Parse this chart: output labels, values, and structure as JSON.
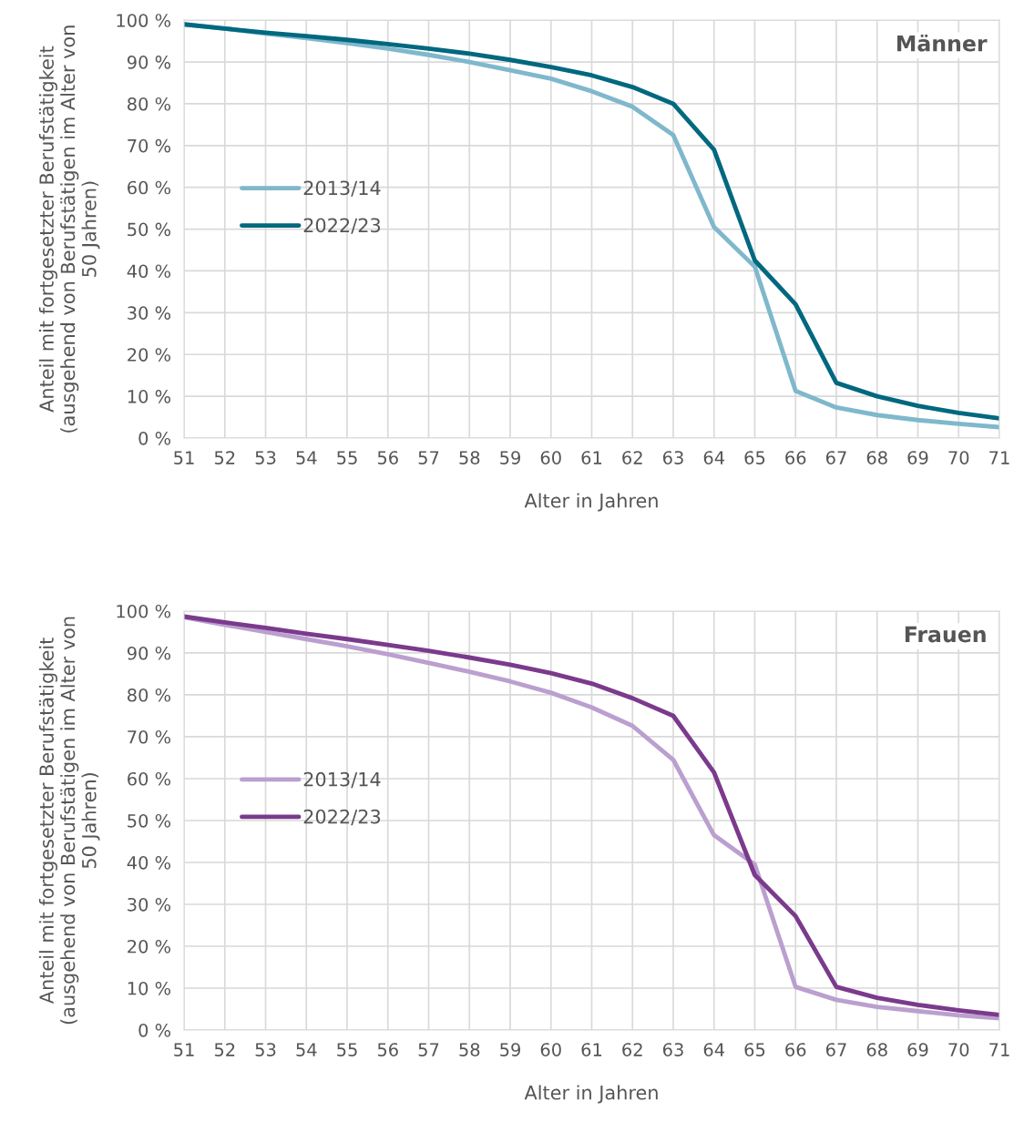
{
  "chart_data": [
    {
      "type": "line",
      "title": "Männer",
      "xlabel": "Alter in Jahren",
      "ylabel": "Anteil mit fortgesetzter Berufstätigkeit\n(ausgehend von Berufstätigen im Alter von\n50 Jahren)",
      "x": [
        51,
        52,
        53,
        54,
        55,
        56,
        57,
        58,
        59,
        60,
        61,
        62,
        63,
        64,
        65,
        66,
        67,
        68,
        69,
        70,
        71
      ],
      "series": [
        {
          "name": "2013/14",
          "color": "#7fb8cc",
          "values": [
            99,
            98,
            96.8,
            95.7,
            94.5,
            93.2,
            91.7,
            90,
            88,
            86,
            83,
            79.3,
            72.5,
            50.5,
            41,
            11.3,
            7.3,
            5.5,
            4.3,
            3.4,
            2.6
          ]
        },
        {
          "name": "2022/23",
          "color": "#00687f",
          "values": [
            99,
            98,
            97,
            96.2,
            95.3,
            94.3,
            93.2,
            92,
            90.5,
            88.8,
            86.8,
            84,
            80,
            69,
            42.5,
            32,
            13.2,
            10,
            7.7,
            6,
            4.7
          ]
        }
      ],
      "xlim": [
        51,
        71
      ],
      "xticks": [
        51,
        52,
        53,
        54,
        55,
        56,
        57,
        58,
        59,
        60,
        61,
        62,
        63,
        64,
        65,
        66,
        67,
        68,
        69,
        70,
        71
      ],
      "ylim": [
        0,
        100
      ],
      "yticks": [
        {
          "value": 0,
          "label": "0 %"
        },
        {
          "value": 10,
          "label": "10 %"
        },
        {
          "value": 20,
          "label": "20 %"
        },
        {
          "value": 30,
          "label": "30 %"
        },
        {
          "value": 40,
          "label": "40 %"
        },
        {
          "value": 50,
          "label": "50 %"
        },
        {
          "value": 60,
          "label": "60 %"
        },
        {
          "value": 70,
          "label": "70 %"
        },
        {
          "value": 80,
          "label": "80 %"
        },
        {
          "value": 90,
          "label": "90 %"
        },
        {
          "value": 100,
          "label": "100 %"
        }
      ],
      "grid": true,
      "legend": "left",
      "marker": "none",
      "line_style": "solid"
    },
    {
      "type": "line",
      "title": "Frauen",
      "xlabel": "Alter in Jahren",
      "ylabel": "Anteil mit fortgesetzter Berufstätigkeit\n(ausgehend von Berufstätigen im Alter von\n50 Jahren)",
      "x": [
        51,
        52,
        53,
        54,
        55,
        56,
        57,
        58,
        59,
        60,
        61,
        62,
        63,
        64,
        65,
        66,
        67,
        68,
        69,
        70,
        71
      ],
      "series": [
        {
          "name": "2013/14",
          "color": "#bb9fcf",
          "values": [
            98.5,
            96.7,
            95,
            93.3,
            91.6,
            89.7,
            87.6,
            85.5,
            83.2,
            80.5,
            77,
            72.6,
            64.5,
            46.5,
            39.5,
            10.3,
            7.2,
            5.5,
            4.5,
            3.5,
            2.8
          ]
        },
        {
          "name": "2022/23",
          "color": "#7b3a8c",
          "values": [
            98.7,
            97.3,
            96,
            94.6,
            93.3,
            91.9,
            90.5,
            88.9,
            87.2,
            85.2,
            82.7,
            79.2,
            75,
            61.5,
            37,
            27.2,
            10.3,
            7.7,
            6,
            4.7,
            3.6
          ]
        }
      ],
      "xlim": [
        51,
        71
      ],
      "xticks": [
        51,
        52,
        53,
        54,
        55,
        56,
        57,
        58,
        59,
        60,
        61,
        62,
        63,
        64,
        65,
        66,
        67,
        68,
        69,
        70,
        71
      ],
      "ylim": [
        0,
        100
      ],
      "yticks": [
        {
          "value": 0,
          "label": "0 %"
        },
        {
          "value": 10,
          "label": "10 %"
        },
        {
          "value": 20,
          "label": "20 %"
        },
        {
          "value": 30,
          "label": "30 %"
        },
        {
          "value": 40,
          "label": "40 %"
        },
        {
          "value": 50,
          "label": "50 %"
        },
        {
          "value": 60,
          "label": "60 %"
        },
        {
          "value": 70,
          "label": "70 %"
        },
        {
          "value": 80,
          "label": "80 %"
        },
        {
          "value": 90,
          "label": "90 %"
        },
        {
          "value": 100,
          "label": "100 %"
        }
      ],
      "grid": true,
      "legend": "left",
      "marker": "none",
      "line_style": "solid"
    }
  ]
}
